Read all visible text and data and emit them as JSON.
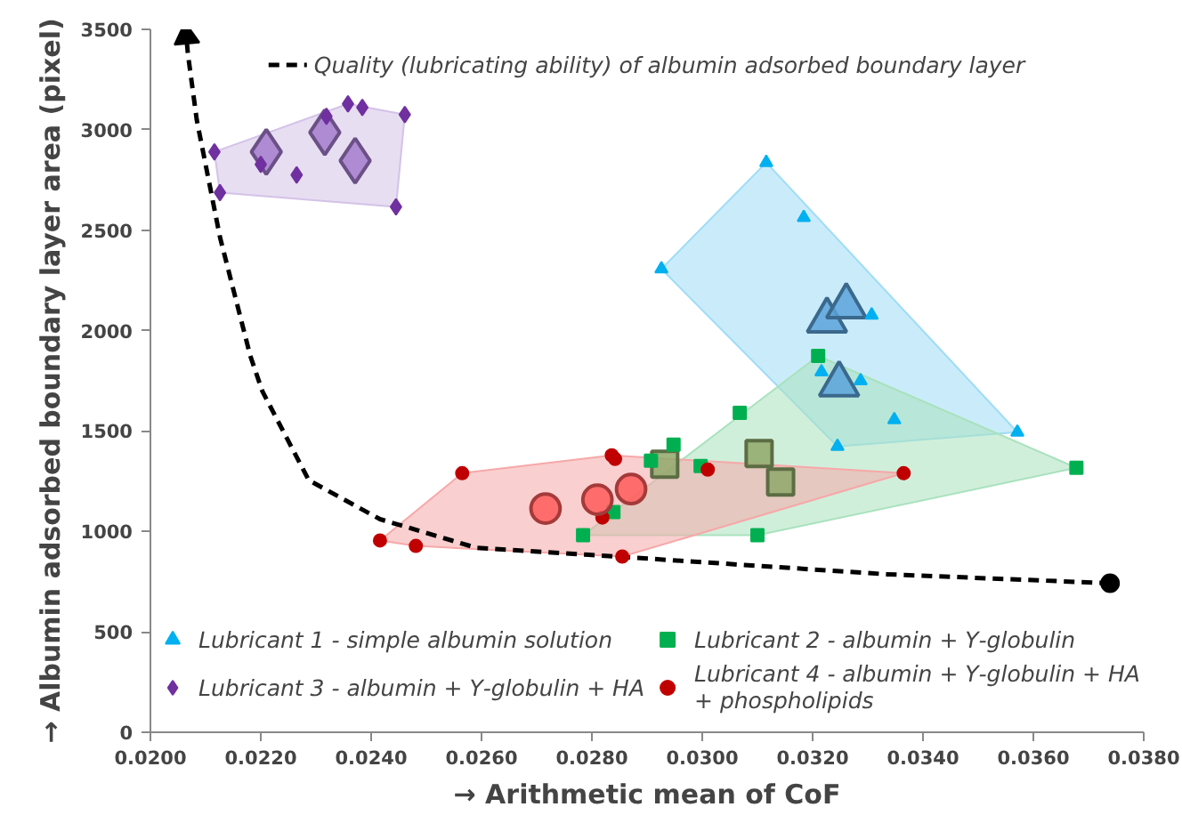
{
  "chart_data": {
    "type": "scatter",
    "xlabel": "→ Arithmetic mean of CoF",
    "ylabel": "→ Albumin adsorbed boundary layer area (pixel)",
    "xlim": [
      0.02,
      0.038
    ],
    "ylim": [
      0,
      3500
    ],
    "xticks": [
      {
        "value": 0.02,
        "label": "0.0200"
      },
      {
        "value": 0.022,
        "label": "0.0220"
      },
      {
        "value": 0.024,
        "label": "0.0240"
      },
      {
        "value": 0.026,
        "label": "0.0260"
      },
      {
        "value": 0.028,
        "label": "0.0280"
      },
      {
        "value": 0.03,
        "label": "0.0300"
      },
      {
        "value": 0.032,
        "label": "0.0320"
      },
      {
        "value": 0.034,
        "label": "0.0340"
      },
      {
        "value": 0.036,
        "label": "0.0360"
      },
      {
        "value": 0.038,
        "label": "0.0380"
      }
    ],
    "yticks": [
      0,
      500,
      1000,
      1500,
      2000,
      2500,
      3000,
      3500
    ],
    "grid": false,
    "legend": "bottom",
    "series": [
      {
        "type": "area",
        "color": "#9fdcf5",
        "x": [
          0.02926,
          0.03116,
          0.03571,
          0.03245
        ],
        "values": [
          2307,
          2837,
          1494,
          1423
        ]
      },
      {
        "type": "area",
        "color": "#a9e2bd",
        "x": [
          0.02784,
          0.0321,
          0.03678,
          0.031
        ],
        "values": [
          981,
          1874,
          1317,
          981
        ]
      },
      {
        "type": "area",
        "color": "#d4c2e8",
        "x": [
          0.02116,
          0.02358,
          0.02461,
          0.02445,
          0.02126
        ],
        "values": [
          2890,
          3129,
          3076,
          2616,
          2687
        ]
      },
      {
        "type": "area",
        "color": "#f6a8a8",
        "x": [
          0.02416,
          0.02565,
          0.02836,
          0.03365,
          0.02855,
          0.02481
        ],
        "values": [
          955,
          1290,
          1379,
          1290,
          875,
          928
        ]
      },
      {
        "type": "line",
        "name": "Quality (lubricating ability) of albumin adsorbed boundary layer",
        "line_style": "dashed",
        "color": "#000000",
        "x": [
          0.03739,
          0.03332,
          0.02794,
          0.0259,
          0.02416,
          0.02287,
          0.02203,
          0.02181,
          0.02126,
          0.02084,
          0.02068,
          0.02065
        ],
        "values": [
          742,
          787,
          884,
          919,
          1061,
          1255,
          1697,
          1874,
          2466,
          3049,
          3376,
          3465
        ]
      },
      {
        "type": "bubble",
        "marker": "triangle",
        "color": "#5ba3d9",
        "x": [
          0.03226,
          0.03261,
          0.03248
        ],
        "values": [
          2050,
          2121,
          1732
        ],
        "sizes": [
          1,
          1,
          1
        ]
      },
      {
        "type": "bubble",
        "marker": "square",
        "color": "#8fa86a",
        "x": [
          0.02932,
          0.03103,
          0.03142
        ],
        "values": [
          1335,
          1388,
          1246
        ],
        "sizes": [
          1,
          1,
          1
        ]
      },
      {
        "type": "bubble",
        "marker": "diamond",
        "color": "#a57ccf",
        "x": [
          0.0221,
          0.02316,
          0.02371
        ],
        "values": [
          2890,
          2987,
          2846
        ],
        "sizes": [
          1,
          1,
          1
        ]
      },
      {
        "name": "Lubricant 1 - simple albumin solution",
        "marker": "triangle",
        "color": "#00b0f0",
        "x": [
          0.03116,
          0.03184,
          0.02926,
          0.03307,
          0.03216,
          0.03287,
          0.03348,
          0.03245,
          0.03571
        ],
        "values": [
          2837,
          2563,
          2307,
          2077,
          1794,
          1750,
          1556,
          1423,
          1494
        ]
      },
      {
        "name": "Lubricant 2 - albumin + Υ-globulin",
        "marker": "square",
        "color": "#00b050",
        "x": [
          0.03068,
          0.02948,
          0.02907,
          0.02997,
          0.02839,
          0.031,
          0.03678,
          0.0321,
          0.02784
        ],
        "values": [
          1591,
          1432,
          1352,
          1326,
          1096,
          981,
          1317,
          1874,
          981
        ]
      },
      {
        "name": "Lubricant 3 - albumin + Υ-globulin + HA",
        "marker": "diamond",
        "color": "#7030a0",
        "x": [
          0.02116,
          0.02126,
          0.022,
          0.02265,
          0.02319,
          0.02358,
          0.02384,
          0.02461,
          0.02445
        ],
        "values": [
          2890,
          2687,
          2828,
          2775,
          3067,
          3129,
          3111,
          3076,
          2616
        ]
      },
      {
        "name": "Lubricant 4 - albumin + Υ-globulin + HA + phospholipids",
        "marker": "circle",
        "color": "#c00000",
        "x": [
          0.02416,
          0.02481,
          0.02565,
          0.02819,
          0.02836,
          0.02842,
          0.02855,
          0.0301,
          0.03365
        ],
        "values": [
          955,
          928,
          1290,
          1069,
          1379,
          1361,
          875,
          1308,
          1290
        ]
      },
      {
        "type": "bubble",
        "marker": "circle",
        "color": "#ff5a5a",
        "x": [
          0.02716,
          0.0281,
          0.02871
        ],
        "values": [
          1114,
          1158,
          1211
        ],
        "sizes": [
          1,
          1,
          1
        ]
      }
    ]
  }
}
